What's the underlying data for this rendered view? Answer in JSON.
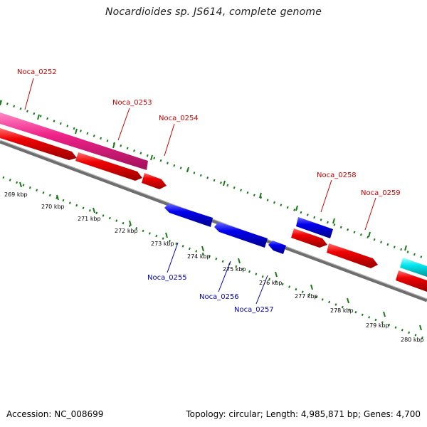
{
  "title": "Nocardioides sp. JS614, complete genome",
  "footer": {
    "accession": "Accession: NC_008699",
    "summary": "Topology: circular; Length: 4,985,871 bp; Genes: 4,700"
  },
  "colors": {
    "forward_gene": "#ee0000",
    "reverse_gene": "#0000ee",
    "pink_feature": "#ee2288",
    "cyan_feature": "#00e5ee",
    "backbone": "#808080",
    "tick": "#1a7a1a",
    "label_red": "#cc0000",
    "label_blue": "#0000bb"
  },
  "scale_labels": [
    "269 kbp",
    "270 kbp",
    "271 kbp",
    "272 kbp",
    "273 kbp",
    "274 kbp",
    "275 kbp",
    "276 kbp",
    "277 kbp",
    "278 kbp",
    "279 kbp",
    "280 kbp"
  ],
  "gene_labels": [
    {
      "name": "Noca_0252",
      "strand": "forward"
    },
    {
      "name": "Noca_0253",
      "strand": "forward"
    },
    {
      "name": "Noca_0254",
      "strand": "forward"
    },
    {
      "name": "Noca_0258",
      "strand": "forward"
    },
    {
      "name": "Noca_0259",
      "strand": "forward"
    },
    {
      "name": "Noca_0255",
      "strand": "reverse"
    },
    {
      "name": "Noca_0256",
      "strand": "reverse"
    },
    {
      "name": "Noca_0257",
      "strand": "reverse"
    }
  ]
}
